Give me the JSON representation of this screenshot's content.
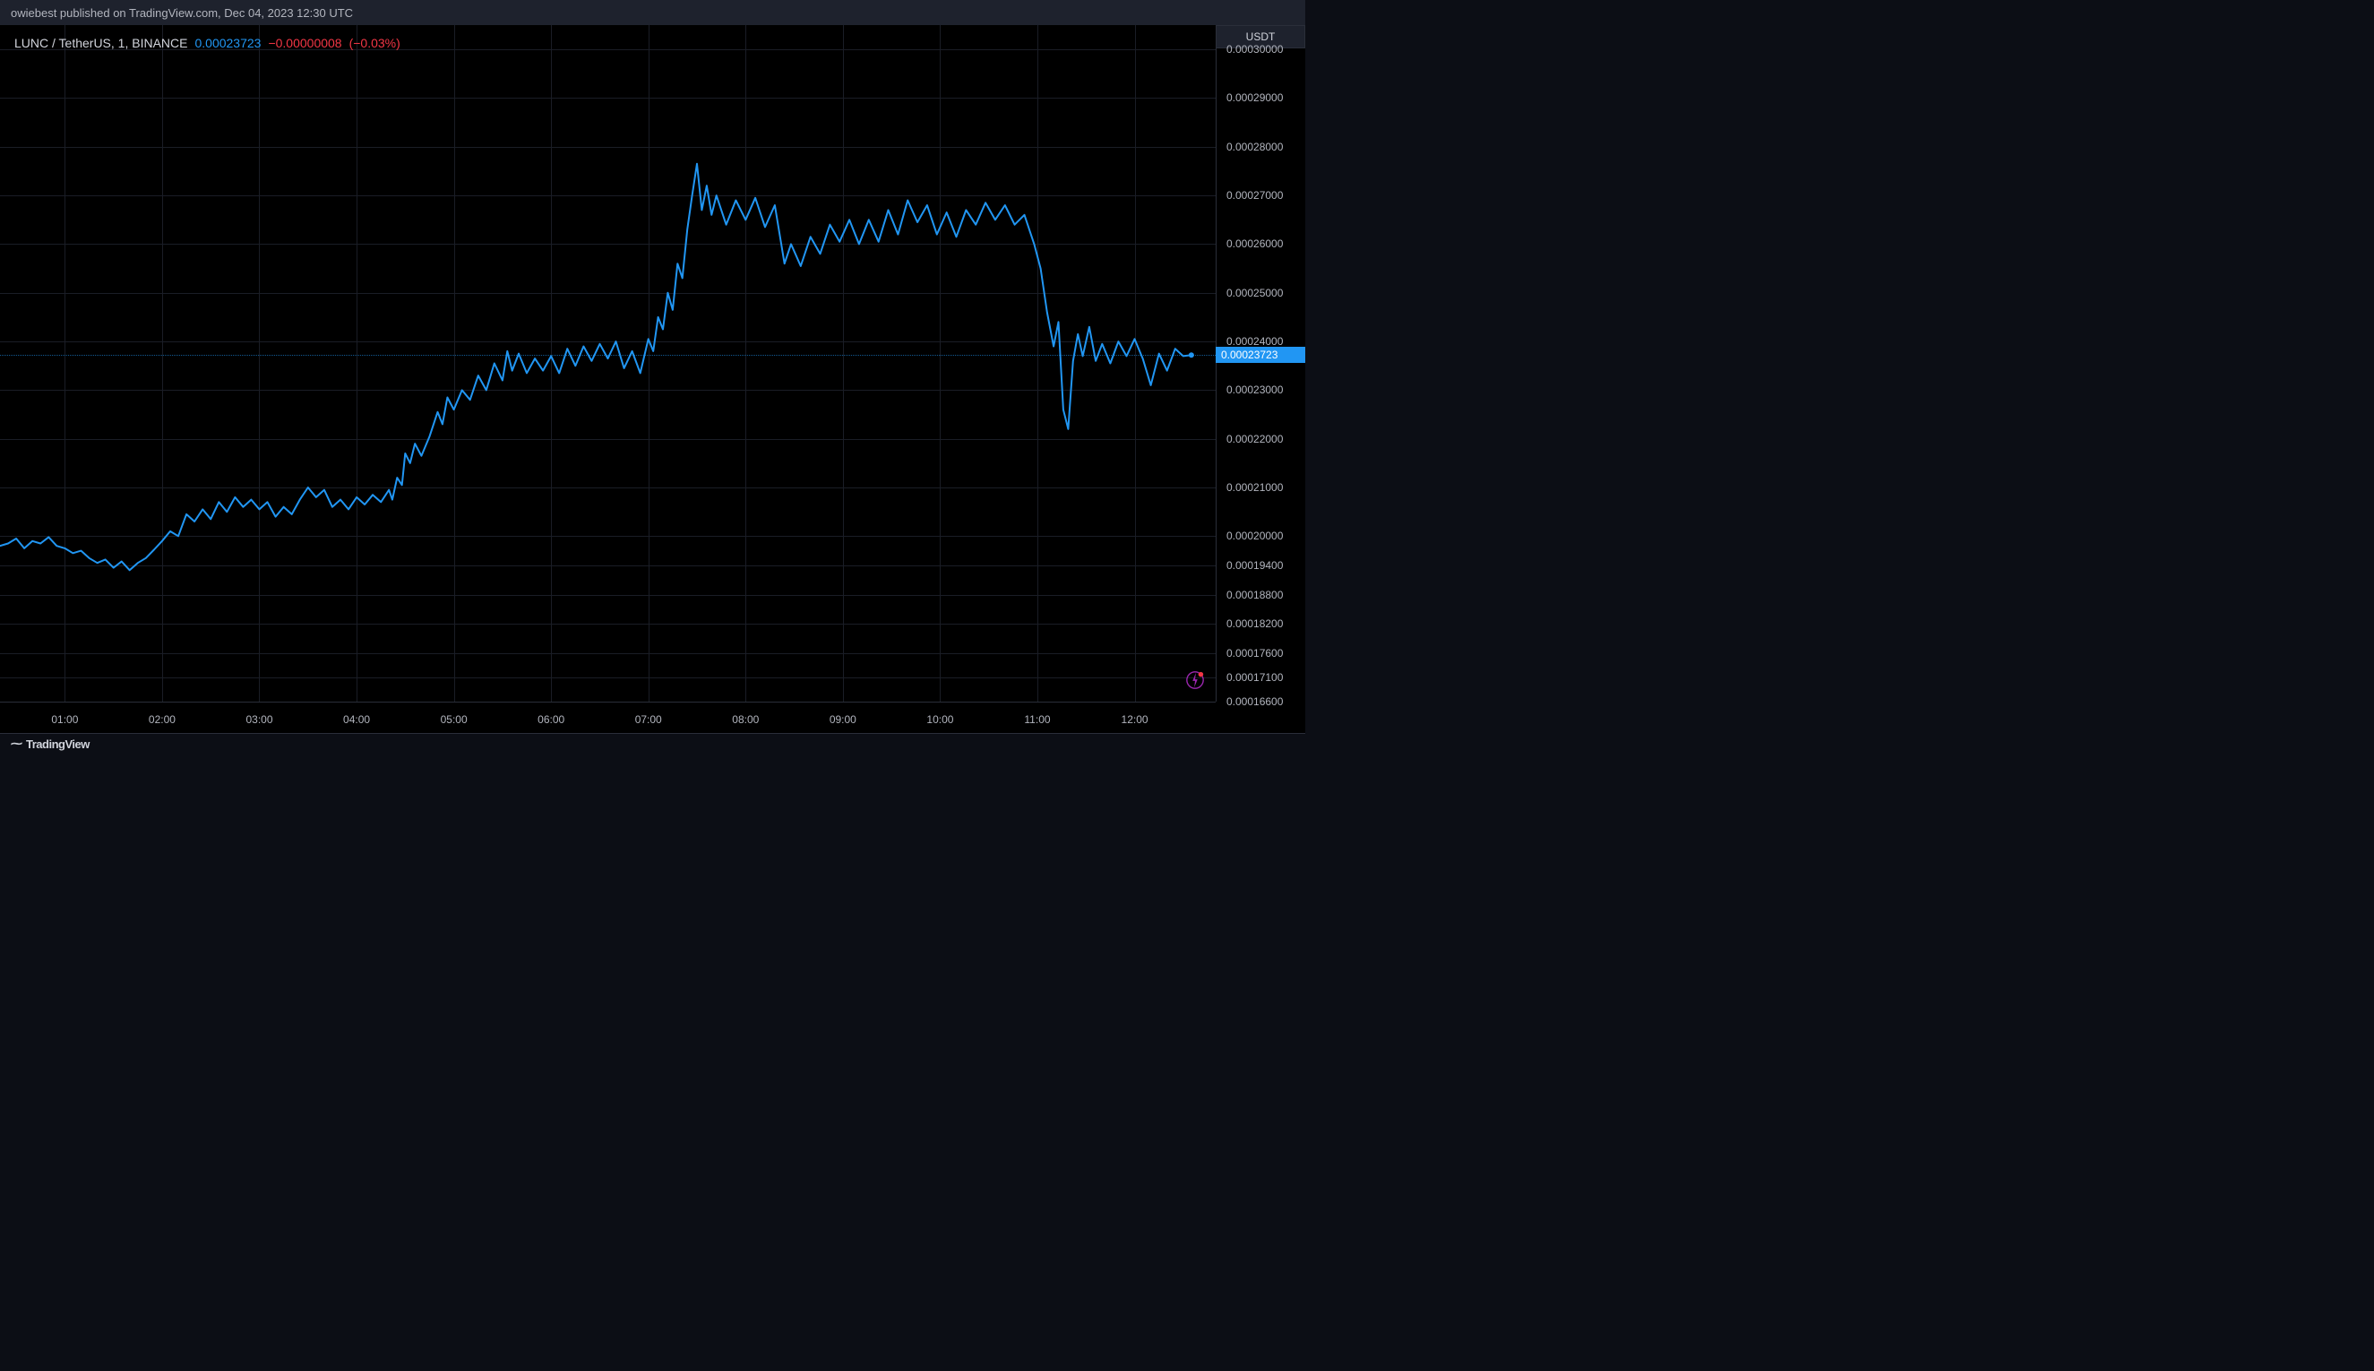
{
  "header": {
    "publish_text": "owiebest published on TradingView.com, Dec 04, 2023 12:30 UTC"
  },
  "symbol": {
    "pair": "LUNC / TetherUS, 1, BINANCE",
    "price": "0.00023723",
    "change_abs": "−0.00000008",
    "change_pct": "(−0.03%)"
  },
  "footer": {
    "brand": "TradingView"
  },
  "chart": {
    "type": "line",
    "line_color": "#2196f3",
    "line_width": 2,
    "background_color": "#000000",
    "grid_color": "#1a1d26",
    "axis_text_color": "#b2b5be",
    "current_price": 0.00023723,
    "current_price_label": "0.00023723",
    "y_axis_label": "USDT",
    "ylim": [
      0.000166,
      0.000305
    ],
    "y_ticks": [
      {
        "v": 0.000166,
        "label": "0.00016600"
      },
      {
        "v": 0.000171,
        "label": "0.00017100"
      },
      {
        "v": 0.000176,
        "label": "0.00017600"
      },
      {
        "v": 0.000182,
        "label": "0.00018200"
      },
      {
        "v": 0.000188,
        "label": "0.00018800"
      },
      {
        "v": 0.000194,
        "label": "0.00019400"
      },
      {
        "v": 0.0002,
        "label": "0.00020000"
      },
      {
        "v": 0.00021,
        "label": "0.00021000"
      },
      {
        "v": 0.00022,
        "label": "0.00022000"
      },
      {
        "v": 0.00023,
        "label": "0.00023000"
      },
      {
        "v": 0.00024,
        "label": "0.00024000"
      },
      {
        "v": 0.00025,
        "label": "0.00025000"
      },
      {
        "v": 0.00026,
        "label": "0.00026000"
      },
      {
        "v": 0.00027,
        "label": "0.00027000"
      },
      {
        "v": 0.00028,
        "label": "0.00028000"
      },
      {
        "v": 0.00029,
        "label": "0.00029000"
      },
      {
        "v": 0.0003,
        "label": "0.00030000"
      }
    ],
    "xlim": [
      20,
      770
    ],
    "x_ticks": [
      {
        "t": 60,
        "label": "01:00"
      },
      {
        "t": 120,
        "label": "02:00"
      },
      {
        "t": 180,
        "label": "03:00"
      },
      {
        "t": 240,
        "label": "04:00"
      },
      {
        "t": 300,
        "label": "05:00"
      },
      {
        "t": 360,
        "label": "06:00"
      },
      {
        "t": 420,
        "label": "07:00"
      },
      {
        "t": 480,
        "label": "08:00"
      },
      {
        "t": 540,
        "label": "09:00"
      },
      {
        "t": 600,
        "label": "10:00"
      },
      {
        "t": 660,
        "label": "11:00"
      },
      {
        "t": 720,
        "label": "12:00"
      }
    ],
    "series": [
      {
        "t": 20,
        "v": 0.000198
      },
      {
        "t": 25,
        "v": 0.0001985
      },
      {
        "t": 30,
        "v": 0.0001995
      },
      {
        "t": 35,
        "v": 0.0001975
      },
      {
        "t": 40,
        "v": 0.000199
      },
      {
        "t": 45,
        "v": 0.0001985
      },
      {
        "t": 50,
        "v": 0.0001998
      },
      {
        "t": 55,
        "v": 0.000198
      },
      {
        "t": 60,
        "v": 0.0001975
      },
      {
        "t": 65,
        "v": 0.0001965
      },
      {
        "t": 70,
        "v": 0.000197
      },
      {
        "t": 75,
        "v": 0.0001955
      },
      {
        "t": 80,
        "v": 0.0001945
      },
      {
        "t": 85,
        "v": 0.0001952
      },
      {
        "t": 90,
        "v": 0.0001935
      },
      {
        "t": 95,
        "v": 0.0001948
      },
      {
        "t": 100,
        "v": 0.000193
      },
      {
        "t": 105,
        "v": 0.0001945
      },
      {
        "t": 110,
        "v": 0.0001955
      },
      {
        "t": 115,
        "v": 0.0001972
      },
      {
        "t": 120,
        "v": 0.000199
      },
      {
        "t": 125,
        "v": 0.000201
      },
      {
        "t": 130,
        "v": 0.0002
      },
      {
        "t": 135,
        "v": 0.0002045
      },
      {
        "t": 140,
        "v": 0.000203
      },
      {
        "t": 145,
        "v": 0.0002055
      },
      {
        "t": 150,
        "v": 0.0002035
      },
      {
        "t": 155,
        "v": 0.000207
      },
      {
        "t": 160,
        "v": 0.000205
      },
      {
        "t": 165,
        "v": 0.000208
      },
      {
        "t": 170,
        "v": 0.000206
      },
      {
        "t": 175,
        "v": 0.0002075
      },
      {
        "t": 180,
        "v": 0.0002055
      },
      {
        "t": 185,
        "v": 0.000207
      },
      {
        "t": 190,
        "v": 0.000204
      },
      {
        "t": 195,
        "v": 0.000206
      },
      {
        "t": 200,
        "v": 0.0002045
      },
      {
        "t": 205,
        "v": 0.0002075
      },
      {
        "t": 210,
        "v": 0.00021
      },
      {
        "t": 215,
        "v": 0.000208
      },
      {
        "t": 220,
        "v": 0.0002095
      },
      {
        "t": 225,
        "v": 0.000206
      },
      {
        "t": 230,
        "v": 0.0002075
      },
      {
        "t": 235,
        "v": 0.0002055
      },
      {
        "t": 240,
        "v": 0.000208
      },
      {
        "t": 245,
        "v": 0.0002065
      },
      {
        "t": 250,
        "v": 0.0002085
      },
      {
        "t": 255,
        "v": 0.000207
      },
      {
        "t": 260,
        "v": 0.0002095
      },
      {
        "t": 262,
        "v": 0.0002075
      },
      {
        "t": 265,
        "v": 0.000212
      },
      {
        "t": 268,
        "v": 0.0002105
      },
      {
        "t": 270,
        "v": 0.000217
      },
      {
        "t": 273,
        "v": 0.000215
      },
      {
        "t": 276,
        "v": 0.000219
      },
      {
        "t": 280,
        "v": 0.0002165
      },
      {
        "t": 285,
        "v": 0.0002205
      },
      {
        "t": 290,
        "v": 0.0002255
      },
      {
        "t": 293,
        "v": 0.000223
      },
      {
        "t": 296,
        "v": 0.0002285
      },
      {
        "t": 300,
        "v": 0.000226
      },
      {
        "t": 305,
        "v": 0.00023
      },
      {
        "t": 310,
        "v": 0.000228
      },
      {
        "t": 315,
        "v": 0.000233
      },
      {
        "t": 320,
        "v": 0.00023
      },
      {
        "t": 325,
        "v": 0.0002355
      },
      {
        "t": 330,
        "v": 0.000232
      },
      {
        "t": 333,
        "v": 0.000238
      },
      {
        "t": 336,
        "v": 0.000234
      },
      {
        "t": 340,
        "v": 0.0002375
      },
      {
        "t": 345,
        "v": 0.0002335
      },
      {
        "t": 350,
        "v": 0.0002365
      },
      {
        "t": 355,
        "v": 0.000234
      },
      {
        "t": 360,
        "v": 0.000237
      },
      {
        "t": 365,
        "v": 0.0002335
      },
      {
        "t": 370,
        "v": 0.0002385
      },
      {
        "t": 375,
        "v": 0.000235
      },
      {
        "t": 380,
        "v": 0.000239
      },
      {
        "t": 385,
        "v": 0.000236
      },
      {
        "t": 390,
        "v": 0.0002395
      },
      {
        "t": 395,
        "v": 0.0002365
      },
      {
        "t": 400,
        "v": 0.00024
      },
      {
        "t": 405,
        "v": 0.0002345
      },
      {
        "t": 410,
        "v": 0.000238
      },
      {
        "t": 415,
        "v": 0.0002335
      },
      {
        "t": 420,
        "v": 0.0002405
      },
      {
        "t": 423,
        "v": 0.000238
      },
      {
        "t": 426,
        "v": 0.000245
      },
      {
        "t": 429,
        "v": 0.0002425
      },
      {
        "t": 432,
        "v": 0.00025
      },
      {
        "t": 435,
        "v": 0.0002465
      },
      {
        "t": 438,
        "v": 0.000256
      },
      {
        "t": 441,
        "v": 0.000253
      },
      {
        "t": 444,
        "v": 0.000263
      },
      {
        "t": 447,
        "v": 0.00027
      },
      {
        "t": 450,
        "v": 0.0002765
      },
      {
        "t": 453,
        "v": 0.000267
      },
      {
        "t": 456,
        "v": 0.000272
      },
      {
        "t": 459,
        "v": 0.000266
      },
      {
        "t": 462,
        "v": 0.00027
      },
      {
        "t": 468,
        "v": 0.000264
      },
      {
        "t": 474,
        "v": 0.000269
      },
      {
        "t": 480,
        "v": 0.000265
      },
      {
        "t": 486,
        "v": 0.0002695
      },
      {
        "t": 492,
        "v": 0.0002635
      },
      {
        "t": 498,
        "v": 0.000268
      },
      {
        "t": 504,
        "v": 0.000256
      },
      {
        "t": 508,
        "v": 0.00026
      },
      {
        "t": 514,
        "v": 0.0002555
      },
      {
        "t": 520,
        "v": 0.0002615
      },
      {
        "t": 526,
        "v": 0.000258
      },
      {
        "t": 532,
        "v": 0.000264
      },
      {
        "t": 538,
        "v": 0.0002605
      },
      {
        "t": 544,
        "v": 0.000265
      },
      {
        "t": 550,
        "v": 0.00026
      },
      {
        "t": 556,
        "v": 0.000265
      },
      {
        "t": 562,
        "v": 0.0002605
      },
      {
        "t": 568,
        "v": 0.000267
      },
      {
        "t": 574,
        "v": 0.000262
      },
      {
        "t": 580,
        "v": 0.000269
      },
      {
        "t": 586,
        "v": 0.0002645
      },
      {
        "t": 592,
        "v": 0.000268
      },
      {
        "t": 598,
        "v": 0.000262
      },
      {
        "t": 604,
        "v": 0.0002665
      },
      {
        "t": 610,
        "v": 0.0002615
      },
      {
        "t": 616,
        "v": 0.000267
      },
      {
        "t": 622,
        "v": 0.000264
      },
      {
        "t": 628,
        "v": 0.0002685
      },
      {
        "t": 634,
        "v": 0.000265
      },
      {
        "t": 640,
        "v": 0.000268
      },
      {
        "t": 646,
        "v": 0.000264
      },
      {
        "t": 652,
        "v": 0.000266
      },
      {
        "t": 658,
        "v": 0.00026
      },
      {
        "t": 662,
        "v": 0.000255
      },
      {
        "t": 666,
        "v": 0.000246
      },
      {
        "t": 670,
        "v": 0.000239
      },
      {
        "t": 673,
        "v": 0.000244
      },
      {
        "t": 676,
        "v": 0.000226
      },
      {
        "t": 679,
        "v": 0.000222
      },
      {
        "t": 682,
        "v": 0.000236
      },
      {
        "t": 685,
        "v": 0.0002415
      },
      {
        "t": 688,
        "v": 0.000237
      },
      {
        "t": 692,
        "v": 0.000243
      },
      {
        "t": 696,
        "v": 0.000236
      },
      {
        "t": 700,
        "v": 0.0002395
      },
      {
        "t": 705,
        "v": 0.0002355
      },
      {
        "t": 710,
        "v": 0.00024
      },
      {
        "t": 715,
        "v": 0.000237
      },
      {
        "t": 720,
        "v": 0.0002405
      },
      {
        "t": 725,
        "v": 0.0002365
      },
      {
        "t": 730,
        "v": 0.000231
      },
      {
        "t": 735,
        "v": 0.0002375
      },
      {
        "t": 740,
        "v": 0.000234
      },
      {
        "t": 745,
        "v": 0.0002385
      },
      {
        "t": 750,
        "v": 0.000237
      },
      {
        "t": 755,
        "v": 0.0002372
      }
    ]
  }
}
